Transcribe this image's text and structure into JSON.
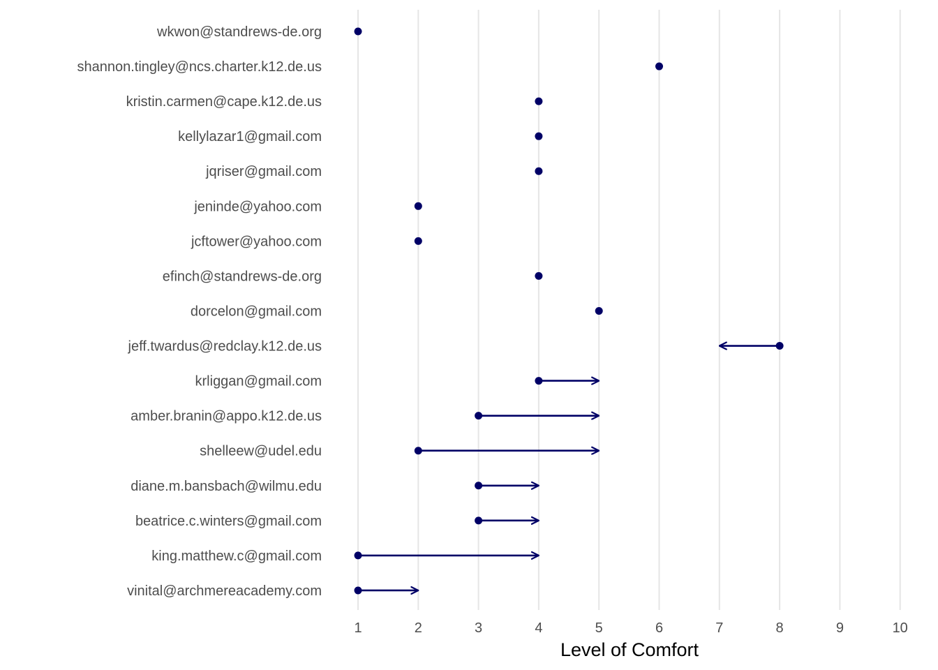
{
  "chart_data": {
    "type": "dumbbell-arrow",
    "xlabel": "Level of Comfort",
    "ylabel": "",
    "title": "",
    "xlim": [
      1,
      10
    ],
    "xticks": [
      "1",
      "2",
      "3",
      "4",
      "5",
      "6",
      "7",
      "8",
      "9",
      "10"
    ],
    "grid": "vertical",
    "color": "#000066",
    "rows": [
      {
        "label": "wkwon@standrews-de.org",
        "start": 1,
        "end": 1
      },
      {
        "label": "shannon.tingley@ncs.charter.k12.de.us",
        "start": 6,
        "end": 6
      },
      {
        "label": "kristin.carmen@cape.k12.de.us",
        "start": 4,
        "end": 4
      },
      {
        "label": "kellylazar1@gmail.com",
        "start": 4,
        "end": 4
      },
      {
        "label": "jqriser@gmail.com",
        "start": 4,
        "end": 4
      },
      {
        "label": "jeninde@yahoo.com",
        "start": 2,
        "end": 2
      },
      {
        "label": "jcftower@yahoo.com",
        "start": 2,
        "end": 2
      },
      {
        "label": "efinch@standrews-de.org",
        "start": 4,
        "end": 4
      },
      {
        "label": "dorcelon@gmail.com",
        "start": 5,
        "end": 5
      },
      {
        "label": "jeff.twardus@redclay.k12.de.us",
        "start": 8,
        "end": 7
      },
      {
        "label": "krliggan@gmail.com",
        "start": 4,
        "end": 5
      },
      {
        "label": "amber.branin@appo.k12.de.us",
        "start": 3,
        "end": 5
      },
      {
        "label": "shelleew@udel.edu",
        "start": 2,
        "end": 5
      },
      {
        "label": "diane.m.bansbach@wilmu.edu",
        "start": 3,
        "end": 4
      },
      {
        "label": "beatrice.c.winters@gmail.com",
        "start": 3,
        "end": 4
      },
      {
        "label": "king.matthew.c@gmail.com",
        "start": 1,
        "end": 4
      },
      {
        "label": "vinital@archmereacademy.com",
        "start": 1,
        "end": 2
      }
    ]
  }
}
